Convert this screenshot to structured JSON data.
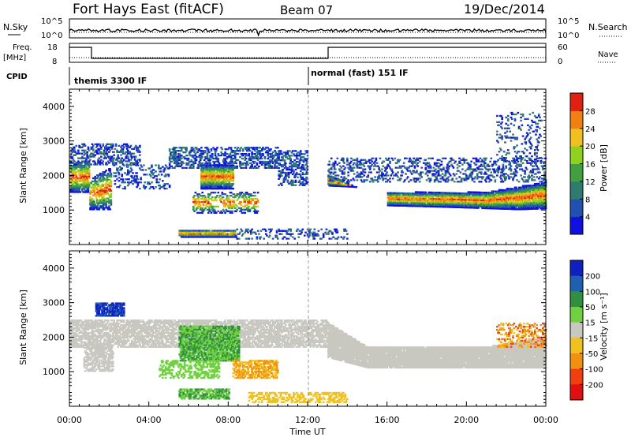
{
  "header": {
    "title": "Fort Hays East (fitACF)",
    "beam": "Beam 07",
    "date": "19/Dec/2014"
  },
  "top_panels": {
    "nsky_label": "N.Sky",
    "nsearch_label": "N.Search",
    "nsky_ticks": [
      "10^5",
      "10^0"
    ],
    "nsearch_ticks": [
      "10^5",
      "10^0"
    ],
    "freq_label_1": "Freq.",
    "freq_label_2": "[MHz]",
    "freq_ticks": [
      "18",
      "8"
    ],
    "nave_label": "Nave",
    "nave_ticks": [
      "60",
      "0"
    ],
    "cpid_label": "CPID",
    "cpid_1": "themis 3300 IF",
    "cpid_2": "normal (fast) 151 IF"
  },
  "chart_data": [
    {
      "type": "heatmap",
      "title": "",
      "ylabel": "Slant Range [km]",
      "ylim": [
        0,
        4500
      ],
      "y_ticks": [
        "1000",
        "2000",
        "3000",
        "4000"
      ],
      "colorbar_label": "Power [dB]",
      "colorbar_ticks": [
        "4",
        "8",
        "12",
        "16",
        "20",
        "24",
        "28"
      ],
      "colorbar_colors": [
        "#1010e0",
        "#2050b0",
        "#307a70",
        "#40a040",
        "#90d020",
        "#f0c020",
        "#f08010",
        "#e02010"
      ]
    },
    {
      "type": "heatmap",
      "title": "",
      "ylabel": "Slant Range [km]",
      "ylim": [
        0,
        4500
      ],
      "y_ticks": [
        "1000",
        "2000",
        "3000",
        "4000"
      ],
      "colorbar_label": "Velocity [m s⁻¹]",
      "colorbar_ticks": [
        "200",
        "100",
        "50",
        "15",
        "-15",
        "-50",
        "-100",
        "-200"
      ],
      "colorbar_colors": [
        "#1020c0",
        "#2060b0",
        "#309040",
        "#70d040",
        "#c8c8c0",
        "#f0c020",
        "#f09010",
        "#f04010",
        "#e01010"
      ]
    }
  ],
  "x_axis": {
    "label": "Time UT",
    "ticks": [
      "00:00",
      "04:00",
      "08:00",
      "12:00",
      "16:00",
      "20:00",
      "00:00"
    ]
  }
}
